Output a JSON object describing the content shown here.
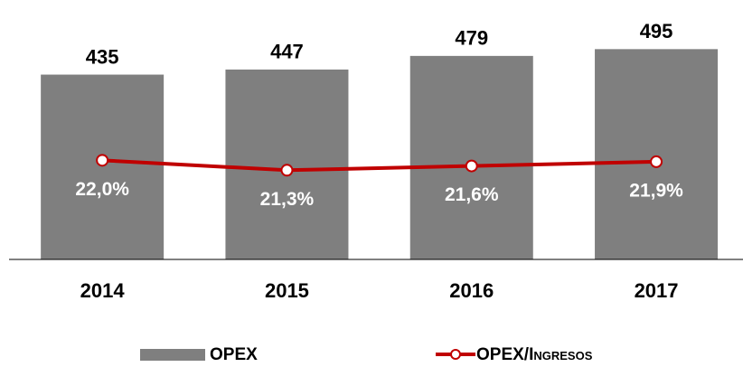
{
  "chart_data": {
    "type": "bar",
    "categories": [
      "2014",
      "2015",
      "2016",
      "2017"
    ],
    "series": [
      {
        "name": "OPEX",
        "type": "bar",
        "color": "#7f7f7f",
        "values": [
          435,
          447,
          479,
          495
        ]
      },
      {
        "name": "OPEX/Ingresos",
        "type": "line",
        "axis": "y2",
        "color": "#c00000",
        "values": [
          22.0,
          21.3,
          21.6,
          21.9
        ],
        "value_labels": [
          "22,0%",
          "21,3%",
          "21,6%",
          "21,9%"
        ]
      }
    ],
    "ylim": [
      0,
      600
    ],
    "y2lim": [
      15,
      33
    ]
  }
}
